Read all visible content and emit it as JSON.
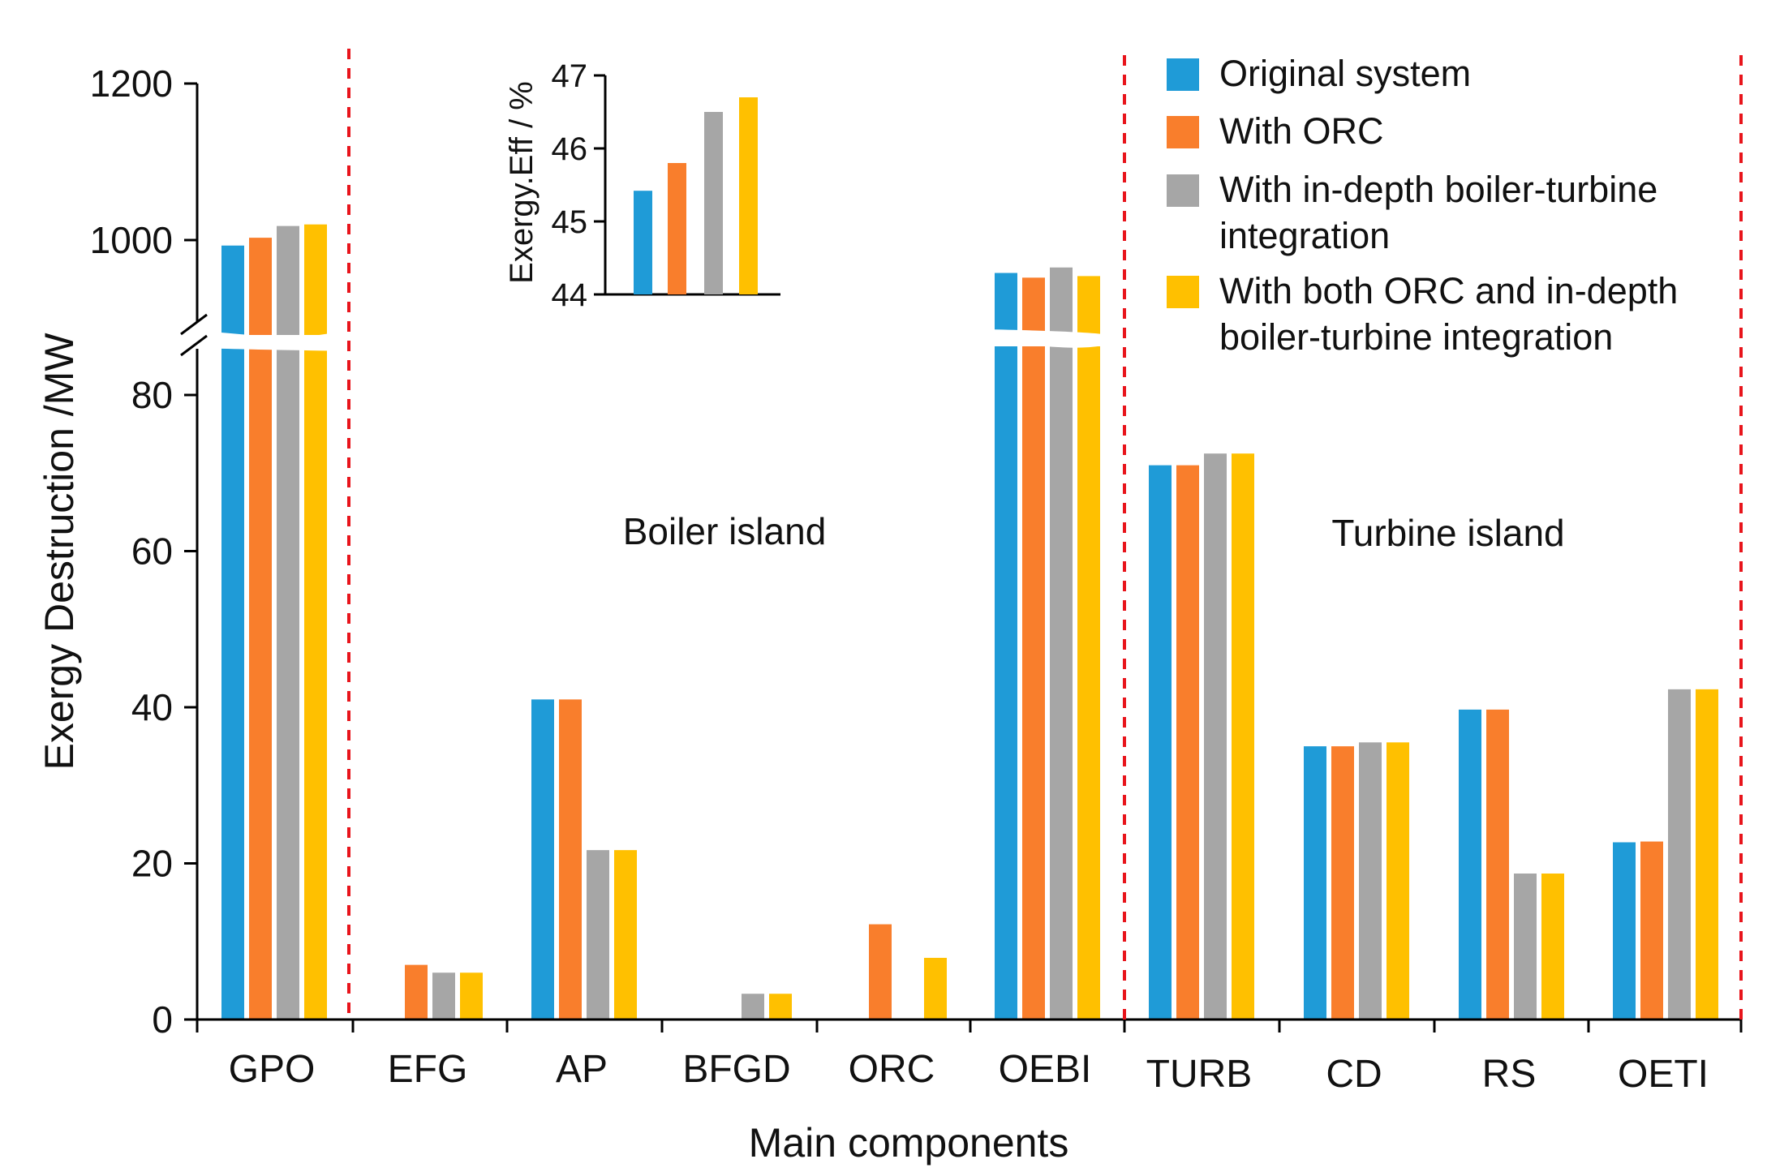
{
  "chart_data": {
    "type": "bar",
    "xlabel": "Main components",
    "ylabel": "Exergy Destruction /MW",
    "categories": [
      "GPO",
      "EFG",
      "AP",
      "BFGD",
      "ORC",
      "OEBI",
      "TURB",
      "CD",
      "RS",
      "OETI"
    ],
    "y_ticks": [
      "0",
      "20",
      "40",
      "60",
      "80",
      "1000",
      "1200"
    ],
    "axis_break": {
      "lower_range": [
        0,
        86
      ],
      "upper_range": [
        876,
        1200
      ]
    },
    "legend_position": "top-right",
    "series": [
      {
        "name": "Original system",
        "color": "#1F9BD7",
        "values": [
          993,
          0,
          41,
          0,
          0,
          958,
          71,
          35,
          39.7,
          22.7
        ]
      },
      {
        "name": "With ORC",
        "color": "#F97E2C",
        "values": [
          1003,
          7,
          41,
          0,
          12.2,
          952,
          71,
          35,
          39.7,
          22.8
        ]
      },
      {
        "name": "With in-depth boiler-turbine integration",
        "color": "#A6A6A6",
        "values": [
          1018,
          6,
          21.7,
          3.3,
          0,
          965,
          72.5,
          35.5,
          18.7,
          42.3
        ]
      },
      {
        "name": "With both ORC and in-depth boiler-turbine integration",
        "color": "#FFC000",
        "values": [
          1020,
          6,
          21.7,
          3.3,
          7.9,
          954,
          72.5,
          35.5,
          18.7,
          42.3
        ]
      }
    ],
    "legend": [
      {
        "lines": [
          "Original system"
        ]
      },
      {
        "lines": [
          "With ORC"
        ]
      },
      {
        "lines": [
          "With in-depth boiler-turbine",
          "integration"
        ]
      },
      {
        "lines": [
          "With both ORC and in-depth",
          "boiler-turbine integration"
        ]
      }
    ],
    "annotations": [
      "Boiler island",
      "Turbine island"
    ],
    "inset": {
      "type": "bar",
      "ylabel": "Exergy.Eff / %",
      "ylim": [
        44,
        47
      ],
      "y_ticks": [
        "44",
        "45",
        "46",
        "47"
      ],
      "values": [
        45.42,
        45.8,
        46.5,
        46.7
      ]
    }
  }
}
